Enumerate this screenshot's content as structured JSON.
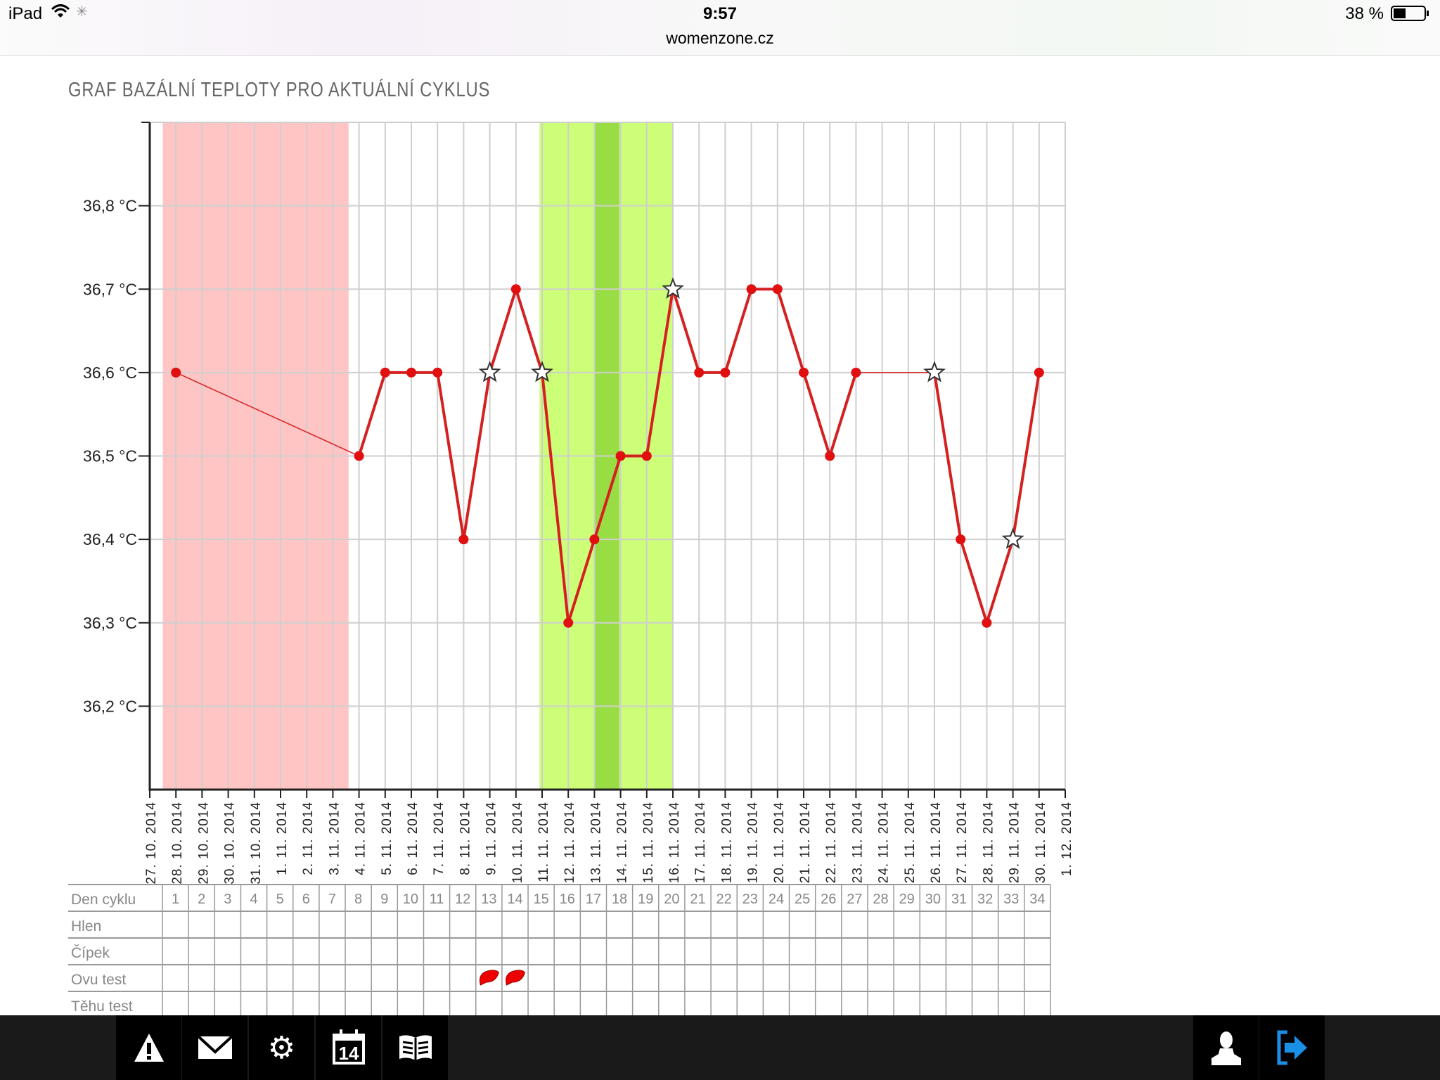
{
  "status_bar": {
    "device": "iPad",
    "time": "9:57",
    "url": "womenzone.cz",
    "battery": "38 %",
    "icons": [
      "wifi-icon",
      "loading-spinner-icon",
      "battery-icon"
    ]
  },
  "chart_data": {
    "type": "line",
    "title": "GRAF BAZÁLNÍ TEPLOTY PRO AKTUÁLNÍ CYKLUS",
    "ylim": [
      36.1,
      36.9
    ],
    "y_ticks": [
      36.2,
      36.3,
      36.4,
      36.5,
      36.6,
      36.7,
      36.8
    ],
    "y_tick_labels": [
      "36,2 °C",
      "36,3 °C",
      "36,4 °C",
      "36,5 °C",
      "36,6 °C",
      "36,7 °C",
      "36,8 °C"
    ],
    "x_tick_labels": [
      "27. 10. 2014",
      "28. 10. 2014",
      "29. 10. 2014",
      "30. 10. 2014",
      "31. 10. 2014",
      "1. 11. 2014",
      "2. 11. 2014",
      "3. 11. 2014",
      "4. 11. 2014",
      "5. 11. 2014",
      "6. 11. 2014",
      "7. 11. 2014",
      "8. 11. 2014",
      "9. 11. 2014",
      "10. 11. 2014",
      "11. 11. 2014",
      "12. 11. 2014",
      "13. 11. 2014",
      "14. 11. 2014",
      "15. 11. 2014",
      "16. 11. 2014",
      "17. 11. 2014",
      "18. 11. 2014",
      "19. 11. 2014",
      "20. 11. 2014",
      "21. 11. 2014",
      "22. 11. 2014",
      "23. 11. 2014",
      "24. 11. 2014",
      "25. 11. 2014",
      "26. 11. 2014",
      "27. 11. 2014",
      "28. 11. 2014",
      "29. 11. 2014",
      "30. 11. 2014",
      "1. 12. 2014"
    ],
    "grid": true,
    "series": [
      {
        "color": "#d42020",
        "points": [
          {
            "day": 1,
            "value": 36.6,
            "marker": "dot"
          },
          {
            "day": 8,
            "value": 36.5,
            "marker": "dot"
          },
          {
            "day": 9,
            "value": 36.6,
            "marker": "dot"
          },
          {
            "day": 10,
            "value": 36.6,
            "marker": "dot"
          },
          {
            "day": 11,
            "value": 36.6,
            "marker": "dot"
          },
          {
            "day": 12,
            "value": 36.4,
            "marker": "dot"
          },
          {
            "day": 13,
            "value": 36.6,
            "marker": "star"
          },
          {
            "day": 14,
            "value": 36.7,
            "marker": "dot"
          },
          {
            "day": 15,
            "value": 36.6,
            "marker": "star"
          },
          {
            "day": 16,
            "value": 36.3,
            "marker": "dot"
          },
          {
            "day": 17,
            "value": 36.4,
            "marker": "dot"
          },
          {
            "day": 18,
            "value": 36.5,
            "marker": "dot"
          },
          {
            "day": 19,
            "value": 36.5,
            "marker": "dot"
          },
          {
            "day": 20,
            "value": 36.7,
            "marker": "star"
          },
          {
            "day": 21,
            "value": 36.6,
            "marker": "dot"
          },
          {
            "day": 22,
            "value": 36.6,
            "marker": "dot"
          },
          {
            "day": 23,
            "value": 36.7,
            "marker": "dot"
          },
          {
            "day": 24,
            "value": 36.7,
            "marker": "dot"
          },
          {
            "day": 25,
            "value": 36.6,
            "marker": "dot"
          },
          {
            "day": 26,
            "value": 36.5,
            "marker": "dot"
          },
          {
            "day": 27,
            "value": 36.6,
            "marker": "dot"
          },
          {
            "day": 30,
            "value": 36.6,
            "marker": "star"
          },
          {
            "day": 31,
            "value": 36.4,
            "marker": "dot"
          },
          {
            "day": 32,
            "value": 36.3,
            "marker": "dot"
          },
          {
            "day": 33,
            "value": 36.4,
            "marker": "star"
          },
          {
            "day": 34,
            "value": 36.6,
            "marker": "dot"
          }
        ]
      }
    ],
    "bands": [
      {
        "type": "period",
        "from_day": 1,
        "to_day": 7,
        "color": "#ffc4c4"
      },
      {
        "type": "fertile",
        "from_day": 15,
        "to_day": 19,
        "color": "#ccff77"
      },
      {
        "type": "ovulation",
        "from_day": 17,
        "to_day": 17,
        "color": "#99dd44"
      }
    ]
  },
  "table": {
    "row_labels": [
      "Den cyklu",
      "Hlen",
      "Čípek",
      "Ovu test",
      "Těhu test"
    ],
    "days": [
      "1",
      "2",
      "3",
      "4",
      "5",
      "6",
      "7",
      "8",
      "9",
      "10",
      "11",
      "12",
      "13",
      "14",
      "15",
      "16",
      "17",
      "18",
      "19",
      "20",
      "21",
      "22",
      "23",
      "24",
      "25",
      "26",
      "27",
      "28",
      "29",
      "30",
      "31",
      "32",
      "33",
      "34"
    ],
    "ovu_test_positive_days": [
      13,
      14
    ]
  },
  "bottom_nav": {
    "left": [
      "warning-icon",
      "mail-icon",
      "settings-icon",
      "calendar-icon",
      "book-icon"
    ],
    "calendar_number": "14",
    "right": [
      "profile-icon",
      "logout-icon"
    ],
    "accent": "#1a8fe6"
  }
}
